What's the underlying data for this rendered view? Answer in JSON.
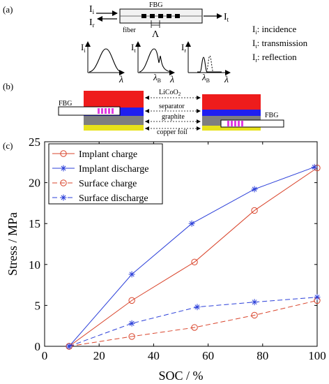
{
  "panel_a": {
    "label": "(a)",
    "fbg_label": "FBG",
    "fiber_label": "fiber",
    "period_symbol": "Λ",
    "incident_symbol": "I",
    "incident_sub": "i",
    "reflect_symbol": "I",
    "reflect_sub": "r",
    "transmit_symbol": "I",
    "transmit_sub": "t",
    "legend": [
      {
        "sym": "I",
        "sub": "i",
        "text": ": incidence"
      },
      {
        "sym": "I",
        "sub": "t",
        "text": ": transmission"
      },
      {
        "sym": "I",
        "sub": "r",
        "text": ": reflection"
      }
    ],
    "spectra": [
      {
        "y_sym": "I",
        "y_sub": "i",
        "x_sym": "λ",
        "marker": ""
      },
      {
        "y_sym": "I",
        "y_sub": "t",
        "x_sym": "λ",
        "marker_sym": "λ",
        "marker_sub": "B"
      },
      {
        "y_sym": "I",
        "y_sub": "r",
        "x_sym": "λ",
        "marker_sym": "λ",
        "marker_sub": "B"
      }
    ]
  },
  "panel_b": {
    "label": "(b)",
    "fbg_left": "FBG",
    "fbg_right": "FBG",
    "layers": {
      "cathode": "LiCoO",
      "cathode_sub": "2",
      "separator": "separator",
      "graphite": "graphite",
      "copper": "copper foil"
    },
    "colors": {
      "cathode": "#ee1c1c",
      "separator": "#1f1ff0",
      "graphite": "#7f7f7f",
      "copper": "#e8e21a",
      "grating": "#e23ce2"
    }
  },
  "panel_c": {
    "label": "(c)",
    "chart_data": {
      "type": "line",
      "xlabel": "SOC / %",
      "ylabel": "Stress / MPa",
      "xlim": [
        0,
        100
      ],
      "ylim": [
        0,
        25
      ],
      "xticks": [
        0,
        20,
        40,
        60,
        80,
        100
      ],
      "yticks": [
        0,
        5,
        10,
        15,
        20,
        25
      ],
      "grid": false,
      "legend_position": "top-left",
      "series": [
        {
          "name": "Implant charge",
          "color": "#d9442b",
          "marker": "circle",
          "dash": "solid",
          "x": [
            9,
            32,
            55,
            77,
            100
          ],
          "y": [
            0,
            5.6,
            10.3,
            16.6,
            21.8
          ]
        },
        {
          "name": "Implant discharge",
          "color": "#2b3fd9",
          "marker": "star",
          "dash": "solid",
          "x": [
            9,
            32,
            54,
            77,
            99
          ],
          "y": [
            0,
            8.8,
            15.0,
            19.2,
            21.9
          ]
        },
        {
          "name": "Surface charge",
          "color": "#d9442b",
          "marker": "circle",
          "dash": "dashed",
          "x": [
            9,
            32,
            55,
            77,
            100
          ],
          "y": [
            0,
            1.2,
            2.3,
            3.8,
            5.6
          ]
        },
        {
          "name": "Surface discharge",
          "color": "#2b3fd9",
          "marker": "star",
          "dash": "dashed",
          "x": [
            9,
            32,
            56,
            77,
            100
          ],
          "y": [
            0,
            2.8,
            4.8,
            5.4,
            6.0
          ]
        }
      ]
    }
  }
}
